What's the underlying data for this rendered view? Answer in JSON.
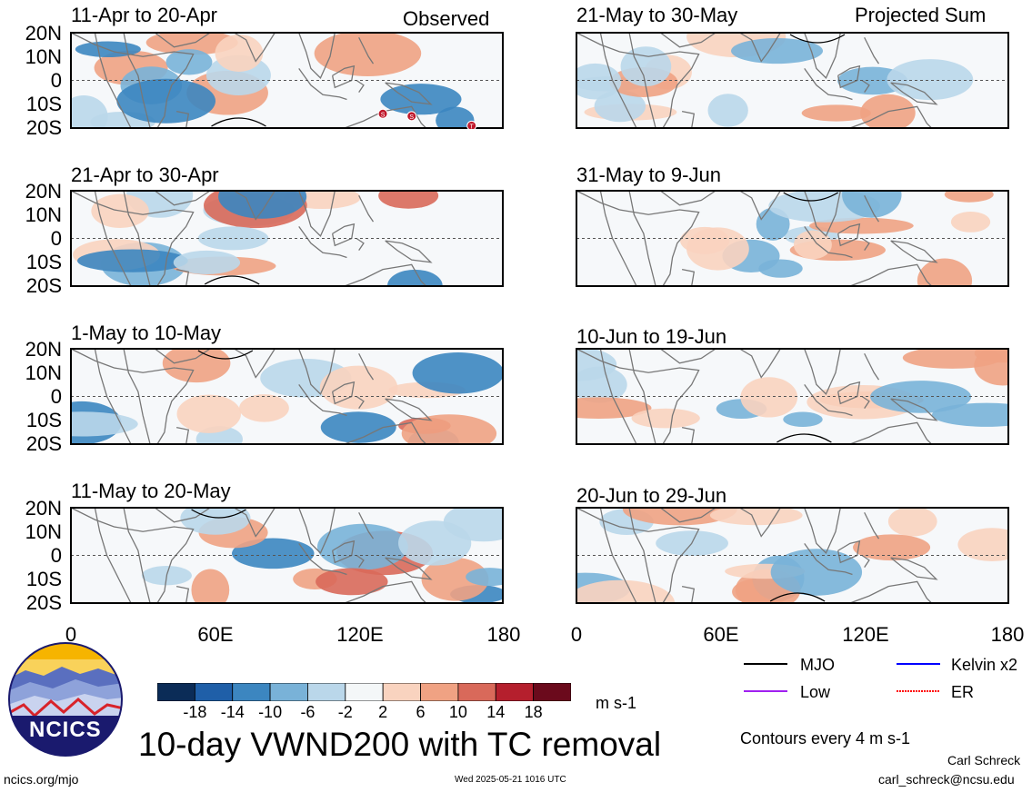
{
  "title": "10-day VWND200 with TC removal",
  "left_column_label": "Observed",
  "right_column_label": "Projected Sum",
  "panels_left": [
    {
      "period": "11-Apr to 20-Apr"
    },
    {
      "period": "21-Apr to 30-Apr"
    },
    {
      "period": "1-May to 10-May"
    },
    {
      "period": "11-May to 20-May"
    }
  ],
  "panels_right": [
    {
      "period": "21-May to 30-May"
    },
    {
      "period": "31-May to 9-Jun"
    },
    {
      "period": "10-Jun to 19-Jun"
    },
    {
      "period": "20-Jun to 29-Jun"
    }
  ],
  "lat_labels": [
    "20N",
    "10N",
    "0",
    "10S",
    "20S"
  ],
  "lon_labels": [
    "0",
    "60E",
    "120E",
    "180"
  ],
  "colorbar": {
    "labels": [
      "-18",
      "-14",
      "-10",
      "-6",
      "-2",
      "2",
      "6",
      "10",
      "14",
      "18"
    ],
    "units": "m s-1",
    "colors": [
      "#0b2c57",
      "#1f5fa8",
      "#3c86c0",
      "#79b2d8",
      "#bad7ea",
      "#f4f7f8",
      "#f9d3bf",
      "#f0a283",
      "#d9695a",
      "#b51f2d",
      "#6b0a1c"
    ]
  },
  "tc_markers": [
    "S",
    "S",
    "T"
  ],
  "legend": {
    "items": [
      {
        "label": "MJO",
        "color": "#000000"
      },
      {
        "label": "Kelvin x2",
        "color": "#0000ff"
      },
      {
        "label": "Low",
        "color": "#a020f0"
      },
      {
        "label": "ER",
        "color": "#ff0000"
      }
    ],
    "contour_note": "Contours every 4 m s-1"
  },
  "logo_text": "NCICS",
  "footer": {
    "url": "ncics.org/mjo",
    "timestamp": "Wed 2025-05-21 1016 UTC",
    "author": "Carl Schreck",
    "email": "carl_schreck@ncsu.edu"
  }
}
